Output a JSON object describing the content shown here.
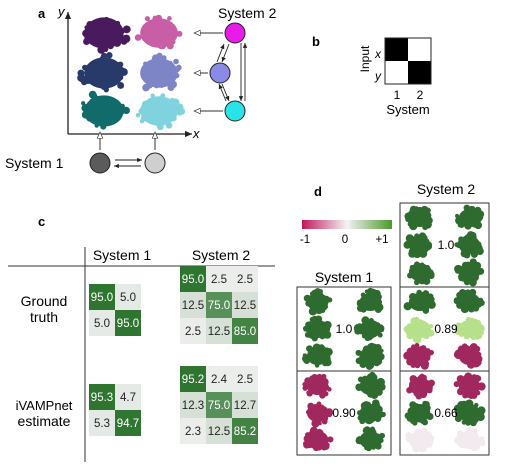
{
  "panel_a": {
    "label": "a",
    "axis_y": "y",
    "axis_x": "x",
    "system1_label": "System 1",
    "system2_label": "System 2",
    "system1_states": [
      "#5b5b5b",
      "#cfcfcf"
    ],
    "system2_states": [
      "#e81be8",
      "#8a8ae8",
      "#29e3e6"
    ],
    "cluster_colors_left": [
      "#4a1a5e",
      "#283a6a",
      "#116b6b"
    ],
    "cluster_colors_right": [
      "#c75ea6",
      "#7e85c6",
      "#7fd3de"
    ]
  },
  "panel_b": {
    "label": "b",
    "input_label": "Input",
    "row_labels": [
      "x",
      "y"
    ],
    "col_labels": [
      "1",
      "2"
    ],
    "system_label": "System",
    "matrix": [
      [
        1,
        0
      ],
      [
        0,
        1
      ]
    ]
  },
  "panel_c": {
    "label": "c",
    "col_headers": [
      "System 1",
      "System 2"
    ],
    "rows": [
      {
        "name_lines": [
          "Ground",
          "truth"
        ],
        "system1": [
          [
            "95.0",
            "5.0"
          ],
          [
            "5.0",
            "95.0"
          ]
        ],
        "system2": [
          [
            "95.0",
            "2.5",
            "2.5"
          ],
          [
            "12.5",
            "75.0",
            "12.5"
          ],
          [
            "2.5",
            "12.5",
            "85.0"
          ]
        ]
      },
      {
        "name_lines": [
          "iVAMPnet",
          "estimate"
        ],
        "system1": [
          [
            "95.3",
            "4.7"
          ],
          [
            "5.3",
            "94.7"
          ]
        ],
        "system2": [
          [
            "95.2",
            "2.4",
            "2.5"
          ],
          [
            "12.3",
            "75.0",
            "12.7"
          ],
          [
            "2.3",
            "12.5",
            "85.2"
          ]
        ]
      }
    ]
  },
  "panel_d": {
    "label": "d",
    "colorbar_ticks": [
      "-1",
      "0",
      "+1"
    ],
    "system1_label": "System 1",
    "system2_label": "System 2",
    "system1_values": [
      "1.0",
      "0.90"
    ],
    "system2_values": [
      "1.0",
      "0.89",
      "0.66"
    ]
  }
}
